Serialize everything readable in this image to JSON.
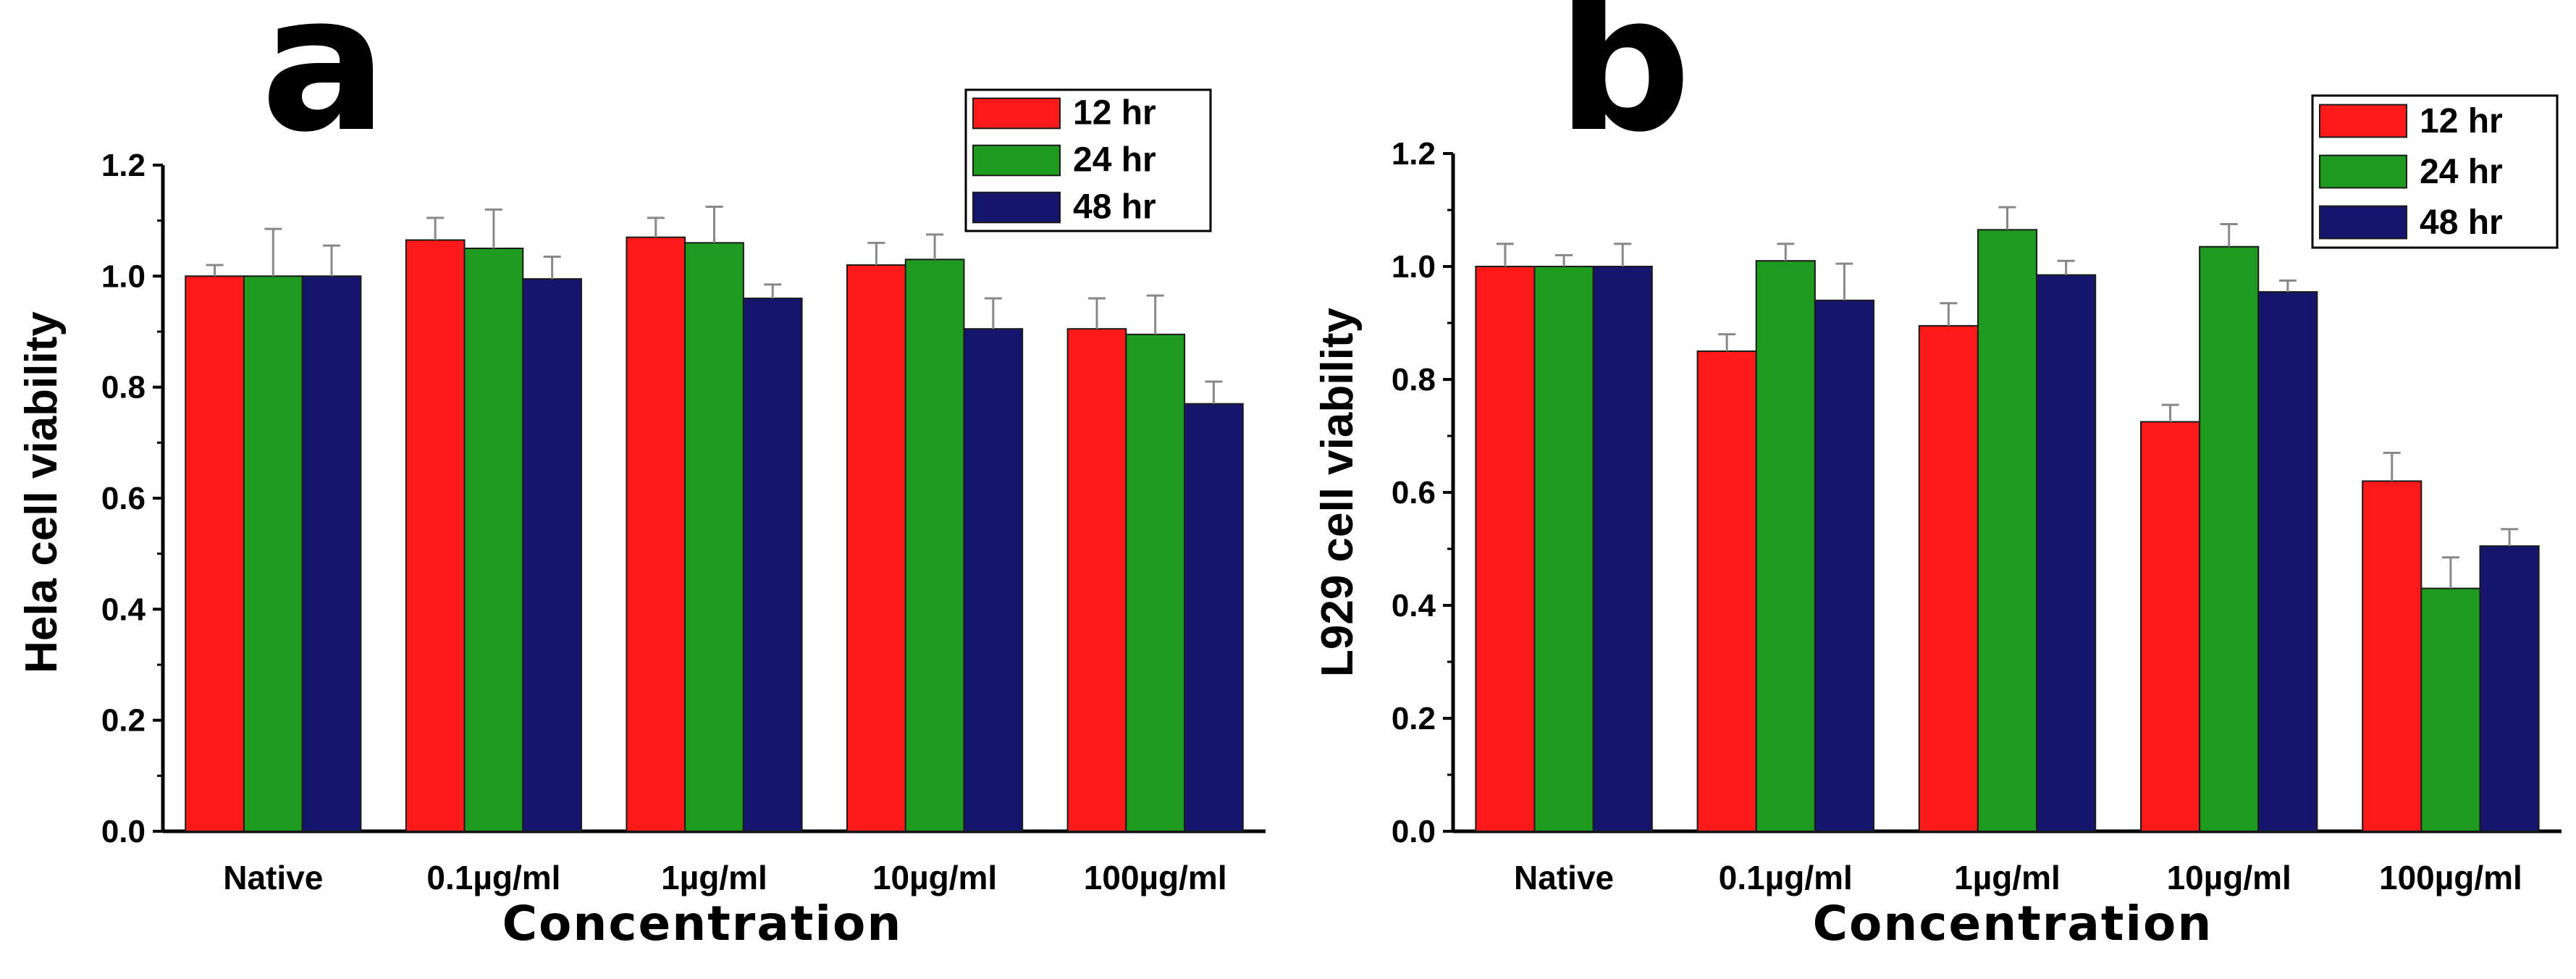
{
  "chart_data": [
    {
      "panel_label": "a",
      "type": "bar",
      "title": "",
      "xlabel": "Concentration",
      "ylabel": "Hela cell viability",
      "ylim": [
        0,
        1.2
      ],
      "yticks": [
        "0.0",
        "0.2",
        "0.4",
        "0.6",
        "0.8",
        "1.0",
        "1.2"
      ],
      "categories": [
        "Native",
        "0.1µg/ml",
        "1µg/ml",
        "10µg/ml",
        "100µg/ml"
      ],
      "series": [
        {
          "name": "12 hr",
          "color": "#ff1a1a",
          "values": [
            1.0,
            1.065,
            1.07,
            1.02,
            0.905
          ],
          "errors": [
            0.02,
            0.04,
            0.035,
            0.04,
            0.055
          ]
        },
        {
          "name": "24 hr",
          "color": "#1e9a1e",
          "values": [
            1.0,
            1.05,
            1.06,
            1.03,
            0.895
          ],
          "errors": [
            0.085,
            0.07,
            0.065,
            0.045,
            0.07
          ]
        },
        {
          "name": "48 hr",
          "color": "#15156e",
          "values": [
            1.0,
            0.995,
            0.96,
            0.905,
            0.77
          ],
          "errors": [
            0.055,
            0.04,
            0.025,
            0.055,
            0.04
          ]
        }
      ],
      "legend": {
        "position": "top-right",
        "entries": [
          "12 hr",
          "24 hr",
          "48 hr"
        ]
      }
    },
    {
      "panel_label": "b",
      "type": "bar",
      "title": "",
      "xlabel": "Concentration",
      "ylabel": "L929 cell viability",
      "ylim": [
        0,
        1.2
      ],
      "yticks": [
        "0.0",
        "0.2",
        "0.4",
        "0.6",
        "0.8",
        "1.0",
        "1.2"
      ],
      "categories": [
        "Native",
        "0.1µg/ml",
        "1µg/ml",
        "10µg/ml",
        "100µg/ml"
      ],
      "series": [
        {
          "name": "12 hr",
          "color": "#ff1a1a",
          "values": [
            1.0,
            0.85,
            0.895,
            0.725,
            0.62
          ],
          "errors": [
            0.04,
            0.03,
            0.04,
            0.03,
            0.05
          ]
        },
        {
          "name": "24 hr",
          "color": "#1e9a1e",
          "values": [
            1.0,
            1.01,
            1.065,
            1.035,
            0.43
          ],
          "errors": [
            0.02,
            0.03,
            0.04,
            0.04,
            0.055
          ]
        },
        {
          "name": "48 hr",
          "color": "#15156e",
          "values": [
            1.0,
            0.94,
            0.985,
            0.955,
            0.505
          ],
          "errors": [
            0.04,
            0.065,
            0.025,
            0.02,
            0.03
          ]
        }
      ],
      "legend": {
        "position": "top-right",
        "entries": [
          "12 hr",
          "24 hr",
          "48 hr"
        ]
      }
    }
  ]
}
